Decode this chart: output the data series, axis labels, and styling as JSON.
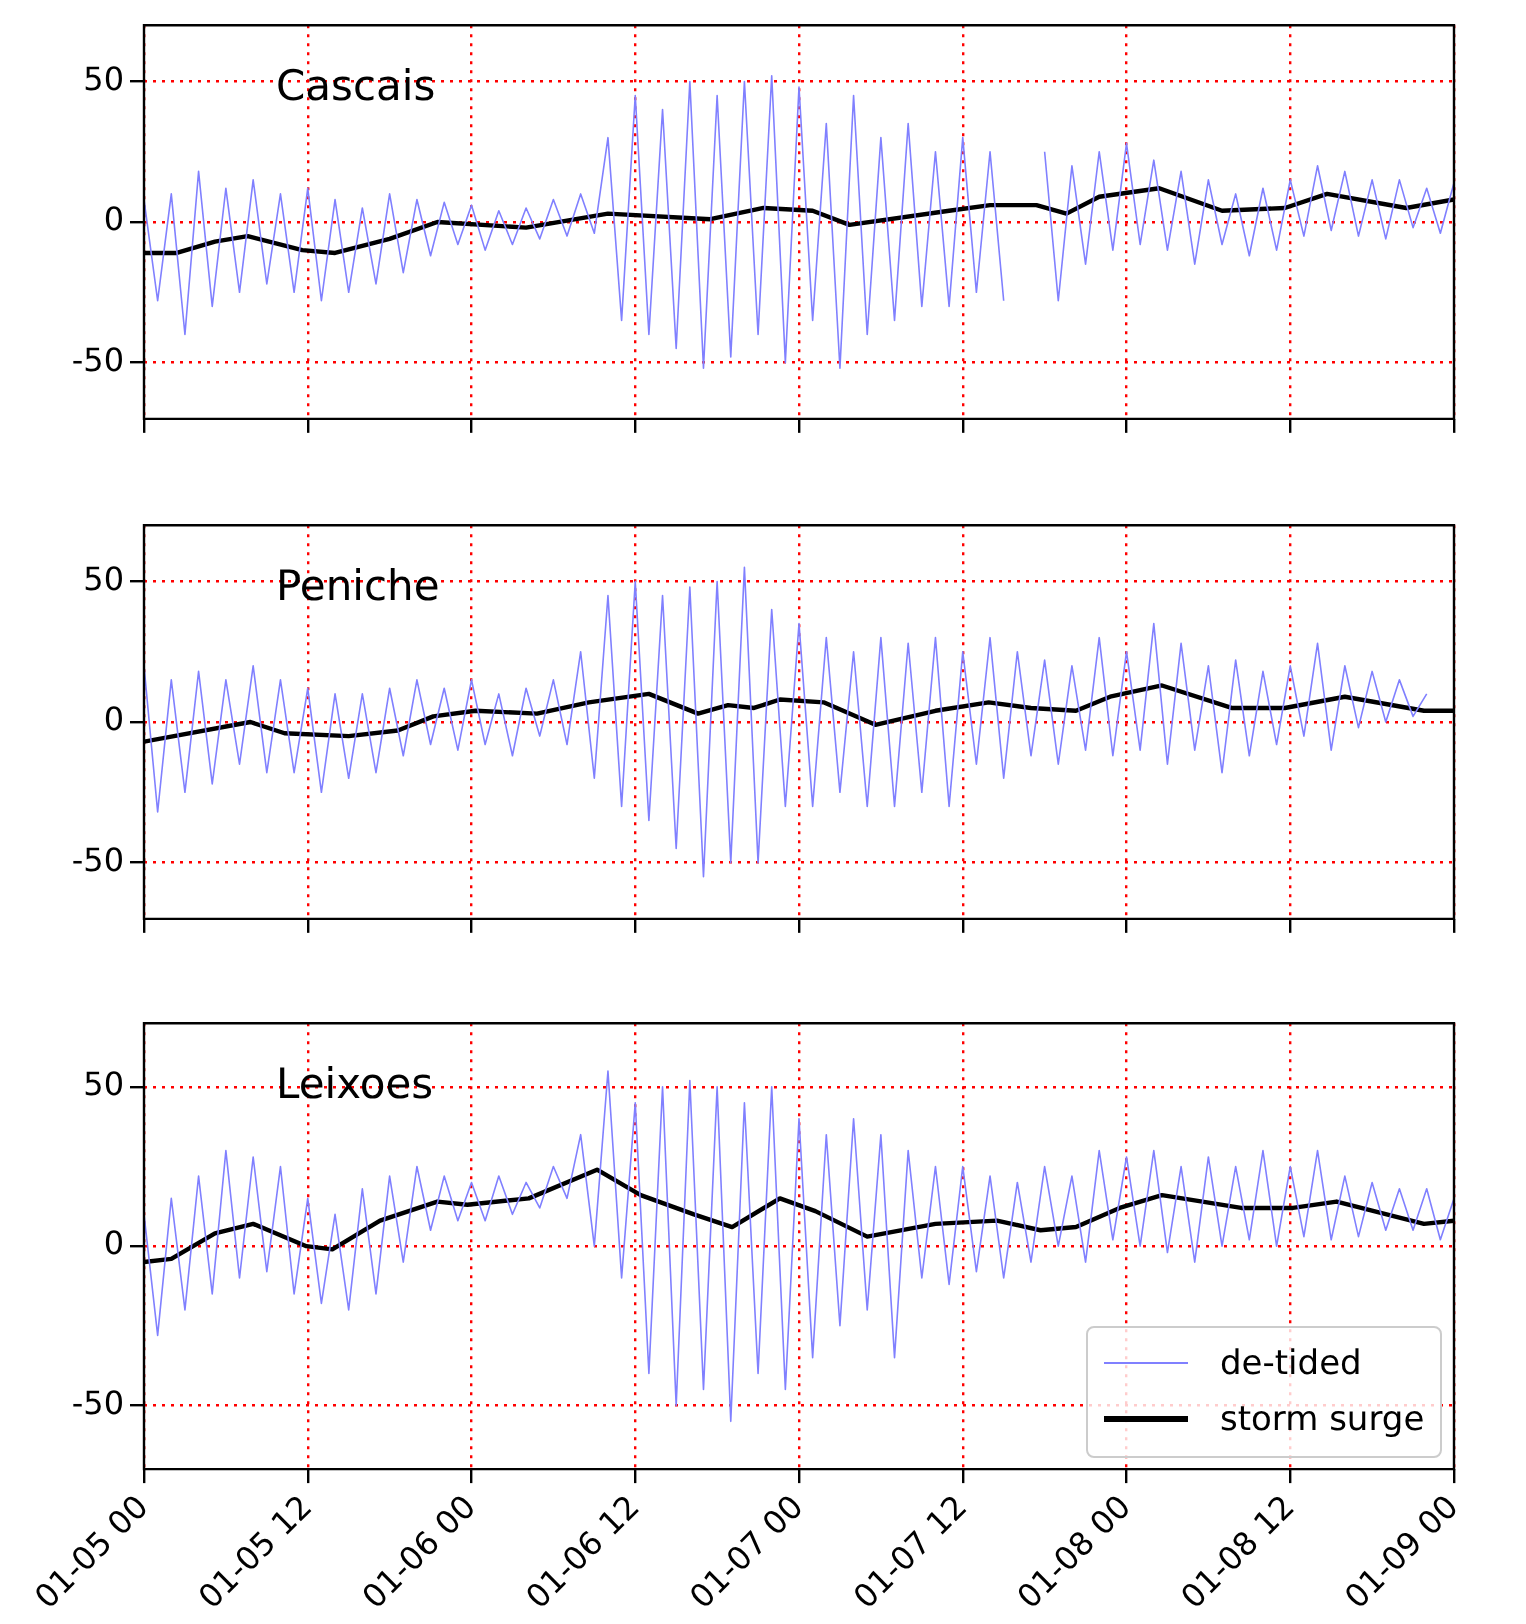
{
  "chart_data": [
    {
      "type": "line",
      "annotations": [
        "Cascais"
      ],
      "x": [
        "--01-05T00:00",
        "--01-05T01:00",
        "--01-05T02:00",
        "--01-05T03:00",
        "--01-05T04:00",
        "--01-05T05:00",
        "--01-05T06:00",
        "--01-05T07:00",
        "--01-05T08:00",
        "--01-05T09:00",
        "--01-05T10:00",
        "--01-05T11:00",
        "--01-05T12:00",
        "--01-05T13:00",
        "--01-05T14:00",
        "--01-05T15:00",
        "--01-05T16:00",
        "--01-05T17:00",
        "--01-05T18:00",
        "--01-05T19:00",
        "--01-05T20:00",
        "--01-05T21:00",
        "--01-05T22:00",
        "--01-05T23:00",
        "--01-06T00:00",
        "--01-06T01:00",
        "--01-06T02:00",
        "--01-06T03:00",
        "--01-06T04:00",
        "--01-06T05:00",
        "--01-06T06:00",
        "--01-06T07:00",
        "--01-06T08:00",
        "--01-06T09:00",
        "--01-06T10:00",
        "--01-06T11:00",
        "--01-06T12:00",
        "--01-06T13:00",
        "--01-06T14:00",
        "--01-06T15:00",
        "--01-06T16:00",
        "--01-06T17:00",
        "--01-06T18:00",
        "--01-06T19:00",
        "--01-06T20:00",
        "--01-06T21:00",
        "--01-06T22:00",
        "--01-06T23:00",
        "--01-07T00:00",
        "--01-07T01:00",
        "--01-07T02:00",
        "--01-07T03:00",
        "--01-07T04:00",
        "--01-07T05:00",
        "--01-07T06:00",
        "--01-07T07:00",
        "--01-07T08:00",
        "--01-07T09:00",
        "--01-07T10:00",
        "--01-07T11:00",
        "--01-07T12:00",
        "--01-07T13:00",
        "--01-07T14:00",
        "--01-07T15:00",
        "--01-07T16:00",
        "--01-07T17:00",
        "--01-07T18:00",
        "--01-07T19:00",
        "--01-07T20:00",
        "--01-07T21:00",
        "--01-07T22:00",
        "--01-07T23:00",
        "--01-08T00:00",
        "--01-08T01:00",
        "--01-08T02:00",
        "--01-08T03:00",
        "--01-08T04:00",
        "--01-08T05:00",
        "--01-08T06:00",
        "--01-08T07:00",
        "--01-08T08:00",
        "--01-08T09:00",
        "--01-08T10:00",
        "--01-08T11:00",
        "--01-08T12:00",
        "--01-08T13:00",
        "--01-08T14:00",
        "--01-08T15:00",
        "--01-08T16:00",
        "--01-08T17:00",
        "--01-08T18:00",
        "--01-08T19:00",
        "--01-08T20:00",
        "--01-08T21:00",
        "--01-08T22:00",
        "--01-08T23:00",
        "--01-09T00:00"
      ],
      "series": [
        {
          "color": "#8080ff",
          "values": [
            8,
            -28,
            10,
            -40,
            18,
            -30,
            12,
            -25,
            15,
            -22,
            10,
            -25,
            12,
            -28,
            8,
            -25,
            5,
            -22,
            10,
            -18,
            8,
            -12,
            7,
            -8,
            6,
            -10,
            4,
            -8,
            5,
            -6,
            8,
            -5,
            10,
            -4,
            30,
            -35,
            45,
            -40,
            40,
            -45,
            50,
            -52,
            45,
            -48,
            50,
            -40,
            52,
            -50,
            48,
            -35,
            35,
            -52,
            45,
            -40,
            30,
            -35,
            35,
            -30,
            25,
            -30,
            30,
            -25,
            25,
            -28,
            null,
            null,
            25,
            -28,
            20,
            -15,
            25,
            -10,
            28,
            -8,
            22,
            -10,
            18,
            -15,
            15,
            -8,
            10,
            -12,
            12,
            -10,
            15,
            -5,
            20,
            -3,
            18,
            -5,
            15,
            -6,
            15,
            -2,
            12,
            -4,
            14
          ]
        },
        {
          "color": "#000000",
          "x": [
            "--01-05T00:00",
            "--01-05T02:24",
            "--01-05T05:12",
            "--01-05T07:36",
            "--01-05T11:36",
            "--01-05T14:00",
            "--01-05T18:00",
            "--01-05T21:30",
            "--01-06T04:00",
            "--01-06T10:00",
            "--01-06T17:30",
            "--01-06T21:24",
            "--01-07T01:00",
            "--01-07T03:42",
            "--01-07T11:00",
            "--01-07T14:00",
            "--01-07T17:24",
            "--01-07T19:36",
            "--01-07T22:00",
            "--01-08T02:24",
            "--01-08T07:00",
            "--01-08T11:36",
            "--01-08T14:42",
            "--01-08T20:30",
            "--01-09T00:00"
          ],
          "values": [
            -11,
            -11,
            -7,
            -5,
            -10,
            -11,
            -6,
            0,
            -2,
            3,
            1,
            5,
            4,
            -1,
            4,
            6,
            6,
            3,
            9,
            12,
            4,
            5,
            10,
            5,
            8
          ]
        }
      ],
      "xlim": [
        "--01-05T00:00",
        "--01-09T00:00"
      ],
      "xticks": [
        {
          "value": "--01-05T00:00",
          "label": null
        },
        {
          "value": "--01-05T12:00",
          "label": null
        },
        {
          "value": "--01-06T00:00",
          "label": null
        },
        {
          "value": "--01-06T12:00",
          "label": null
        },
        {
          "value": "--01-07T00:00",
          "label": null
        },
        {
          "value": "--01-07T12:00",
          "label": null
        },
        {
          "value": "--01-08T00:00",
          "label": null
        },
        {
          "value": "--01-08T12:00",
          "label": null
        },
        {
          "value": "--01-09T00:00",
          "label": null
        }
      ],
      "ylim": [
        -70,
        70
      ],
      "yticks": [
        -50,
        0,
        50
      ],
      "grid": true,
      "tick_labels": "y"
    },
    {
      "type": "line",
      "annotations": [
        "Peniche"
      ],
      "x": [
        "--01-05T00:00",
        "--01-05T01:00",
        "--01-05T02:00",
        "--01-05T03:00",
        "--01-05T04:00",
        "--01-05T05:00",
        "--01-05T06:00",
        "--01-05T07:00",
        "--01-05T08:00",
        "--01-05T09:00",
        "--01-05T10:00",
        "--01-05T11:00",
        "--01-05T12:00",
        "--01-05T13:00",
        "--01-05T14:00",
        "--01-05T15:00",
        "--01-05T16:00",
        "--01-05T17:00",
        "--01-05T18:00",
        "--01-05T19:00",
        "--01-05T20:00",
        "--01-05T21:00",
        "--01-05T22:00",
        "--01-05T23:00",
        "--01-06T00:00",
        "--01-06T01:00",
        "--01-06T02:00",
        "--01-06T03:00",
        "--01-06T04:00",
        "--01-06T05:00",
        "--01-06T06:00",
        "--01-06T07:00",
        "--01-06T08:00",
        "--01-06T09:00",
        "--01-06T10:00",
        "--01-06T11:00",
        "--01-06T12:00",
        "--01-06T13:00",
        "--01-06T14:00",
        "--01-06T15:00",
        "--01-06T16:00",
        "--01-06T17:00",
        "--01-06T18:00",
        "--01-06T19:00",
        "--01-06T20:00",
        "--01-06T21:00",
        "--01-06T22:00",
        "--01-06T23:00",
        "--01-07T00:00",
        "--01-07T01:00",
        "--01-07T02:00",
        "--01-07T03:00",
        "--01-07T04:00",
        "--01-07T05:00",
        "--01-07T06:00",
        "--01-07T07:00",
        "--01-07T08:00",
        "--01-07T09:00",
        "--01-07T10:00",
        "--01-07T11:00",
        "--01-07T12:00",
        "--01-07T13:00",
        "--01-07T14:00",
        "--01-07T15:00",
        "--01-07T16:00",
        "--01-07T17:00",
        "--01-07T18:00",
        "--01-07T19:00",
        "--01-07T20:00",
        "--01-07T21:00",
        "--01-07T22:00",
        "--01-07T23:00",
        "--01-08T00:00",
        "--01-08T01:00",
        "--01-08T02:00",
        "--01-08T03:00",
        "--01-08T04:00",
        "--01-08T05:00",
        "--01-08T06:00",
        "--01-08T07:00",
        "--01-08T08:00",
        "--01-08T09:00",
        "--01-08T10:00",
        "--01-08T11:00",
        "--01-08T12:00",
        "--01-08T13:00",
        "--01-08T14:00",
        "--01-08T15:00",
        "--01-08T16:00",
        "--01-08T17:00",
        "--01-08T18:00",
        "--01-08T19:00",
        "--01-08T20:00",
        "--01-08T21:00",
        "--01-08T22:00"
      ],
      "series": [
        {
          "color": "#8080ff",
          "values": [
            20,
            -32,
            15,
            -25,
            18,
            -22,
            15,
            -15,
            20,
            -18,
            15,
            -18,
            12,
            -25,
            10,
            -20,
            10,
            -18,
            12,
            -12,
            15,
            -8,
            12,
            -10,
            15,
            -8,
            10,
            -12,
            12,
            -5,
            15,
            -8,
            25,
            -20,
            45,
            -30,
            50,
            -35,
            45,
            -45,
            48,
            -55,
            50,
            -50,
            55,
            -50,
            40,
            -30,
            35,
            -30,
            30,
            -25,
            25,
            -30,
            30,
            -30,
            28,
            -25,
            30,
            -30,
            25,
            -15,
            30,
            -20,
            25,
            -12,
            22,
            -15,
            20,
            -10,
            30,
            -12,
            25,
            -10,
            35,
            -15,
            28,
            -10,
            20,
            -18,
            22,
            -12,
            18,
            -8,
            20,
            -5,
            28,
            -10,
            20,
            -2,
            18,
            0,
            15,
            2,
            10
          ]
        },
        {
          "color": "#000000",
          "x": [
            "--01-05T00:00",
            "--01-05T07:48",
            "--01-05T10:18",
            "--01-05T15:00",
            "--01-05T18:36",
            "--01-05T21:12",
            "--01-06T00:18",
            "--01-06T04:48",
            "--01-06T08:36",
            "--01-06T13:00",
            "--01-06T16:36",
            "--01-06T18:48",
            "--01-06T20:42",
            "--01-06T22:36",
            "--01-07T01:48",
            "--01-07T05:36",
            "--01-07T10:00",
            "--01-07T13:54",
            "--01-07T17:00",
            "--01-07T20:18",
            "--01-07T22:48",
            "--01-08T02:36",
            "--01-08T07:42",
            "--01-08T11:36",
            "--01-08T16:00",
            "--01-08T21:48",
            "--01-09T00:00"
          ],
          "values": [
            -7,
            0,
            -4,
            -5,
            -3,
            2,
            4,
            3,
            7,
            10,
            3,
            6,
            5,
            8,
            7,
            -1,
            4,
            7,
            5,
            4,
            9,
            13,
            5,
            5,
            9,
            4,
            4
          ]
        }
      ],
      "xlim": [
        "--01-05T00:00",
        "--01-09T00:00"
      ],
      "xticks": [
        {
          "value": "--01-05T00:00",
          "label": null
        },
        {
          "value": "--01-05T12:00",
          "label": null
        },
        {
          "value": "--01-06T00:00",
          "label": null
        },
        {
          "value": "--01-06T12:00",
          "label": null
        },
        {
          "value": "--01-07T00:00",
          "label": null
        },
        {
          "value": "--01-07T12:00",
          "label": null
        },
        {
          "value": "--01-08T00:00",
          "label": null
        },
        {
          "value": "--01-08T12:00",
          "label": null
        },
        {
          "value": "--01-09T00:00",
          "label": null
        }
      ],
      "ylim": [
        -70,
        70
      ],
      "yticks": [
        -50,
        0,
        50
      ],
      "grid": true,
      "tick_labels": "y"
    },
    {
      "type": "line",
      "annotations": [
        "Leixoes"
      ],
      "x": [
        "--01-05T00:00",
        "--01-05T01:00",
        "--01-05T02:00",
        "--01-05T03:00",
        "--01-05T04:00",
        "--01-05T05:00",
        "--01-05T06:00",
        "--01-05T07:00",
        "--01-05T08:00",
        "--01-05T09:00",
        "--01-05T10:00",
        "--01-05T11:00",
        "--01-05T12:00",
        "--01-05T13:00",
        "--01-05T14:00",
        "--01-05T15:00",
        "--01-05T16:00",
        "--01-05T17:00",
        "--01-05T18:00",
        "--01-05T19:00",
        "--01-05T20:00",
        "--01-05T21:00",
        "--01-05T22:00",
        "--01-05T23:00",
        "--01-06T00:00",
        "--01-06T01:00",
        "--01-06T02:00",
        "--01-06T03:00",
        "--01-06T04:00",
        "--01-06T05:00",
        "--01-06T06:00",
        "--01-06T07:00",
        "--01-06T08:00",
        "--01-06T09:00",
        "--01-06T10:00",
        "--01-06T11:00",
        "--01-06T12:00",
        "--01-06T13:00",
        "--01-06T14:00",
        "--01-06T15:00",
        "--01-06T16:00",
        "--01-06T17:00",
        "--01-06T18:00",
        "--01-06T19:00",
        "--01-06T20:00",
        "--01-06T21:00",
        "--01-06T22:00",
        "--01-06T23:00",
        "--01-07T00:00",
        "--01-07T01:00",
        "--01-07T02:00",
        "--01-07T03:00",
        "--01-07T04:00",
        "--01-07T05:00",
        "--01-07T06:00",
        "--01-07T07:00",
        "--01-07T08:00",
        "--01-07T09:00",
        "--01-07T10:00",
        "--01-07T11:00",
        "--01-07T12:00",
        "--01-07T13:00",
        "--01-07T14:00",
        "--01-07T15:00",
        "--01-07T16:00",
        "--01-07T17:00",
        "--01-07T18:00",
        "--01-07T19:00",
        "--01-07T20:00",
        "--01-07T21:00",
        "--01-07T22:00",
        "--01-07T23:00",
        "--01-08T00:00",
        "--01-08T01:00",
        "--01-08T02:00",
        "--01-08T03:00",
        "--01-08T04:00",
        "--01-08T05:00",
        "--01-08T06:00",
        "--01-08T07:00",
        "--01-08T08:00",
        "--01-08T09:00",
        "--01-08T10:00",
        "--01-08T11:00",
        "--01-08T12:00",
        "--01-08T13:00",
        "--01-08T14:00",
        "--01-08T15:00",
        "--01-08T16:00",
        "--01-08T17:00",
        "--01-08T18:00",
        "--01-08T19:00",
        "--01-08T20:00",
        "--01-08T21:00",
        "--01-08T22:00",
        "--01-08T23:00",
        "--01-09T00:00"
      ],
      "series": [
        {
          "name": "de-tided",
          "color": "#8080ff",
          "values": [
            10,
            -28,
            15,
            -20,
            22,
            -15,
            30,
            -10,
            28,
            -8,
            25,
            -15,
            15,
            -18,
            10,
            -20,
            18,
            -15,
            22,
            -5,
            25,
            5,
            22,
            8,
            20,
            8,
            22,
            10,
            20,
            12,
            25,
            15,
            35,
            0,
            55,
            -10,
            45,
            -40,
            50,
            -50,
            52,
            -45,
            50,
            -55,
            45,
            -40,
            50,
            -45,
            40,
            -35,
            35,
            -25,
            40,
            -20,
            35,
            -35,
            30,
            -10,
            25,
            -12,
            25,
            -8,
            22,
            -10,
            20,
            -5,
            25,
            0,
            22,
            -5,
            30,
            2,
            28,
            0,
            30,
            -2,
            25,
            -5,
            28,
            0,
            25,
            2,
            30,
            0,
            25,
            3,
            30,
            2,
            22,
            3,
            20,
            5,
            18,
            5,
            18,
            2,
            15
          ]
        },
        {
          "name": "storm surge",
          "color": "#000000",
          "x": [
            "--01-05T00:00",
            "--01-05T02:00",
            "--01-05T05:12",
            "--01-05T08:00",
            "--01-05T11:54",
            "--01-05T13:48",
            "--01-05T17:18",
            "--01-05T21:30",
            "--01-05T23:42",
            "--01-06T04:12",
            "--01-06T09:12",
            "--01-06T12:24",
            "--01-06T16:18",
            "--01-06T19:06",
            "--01-06T22:36",
            "--01-07T01:12",
            "--01-07T05:00",
            "--01-07T10:00",
            "--01-07T14:30",
            "--01-07T17:42",
            "--01-07T20:18",
            "--01-07T23:30",
            "--01-08T02:36",
            "--01-08T08:24",
            "--01-08T12:12",
            "--01-08T15:24",
            "--01-08T21:48",
            "--01-09T00:00"
          ],
          "values": [
            -5,
            -4,
            4,
            7,
            0,
            -1,
            8,
            14,
            13,
            15,
            24,
            16,
            10,
            6,
            15,
            11,
            3,
            7,
            8,
            5,
            6,
            12,
            16,
            12,
            12,
            14,
            7,
            8
          ]
        }
      ],
      "xlim": [
        "--01-05T00:00",
        "--01-09T00:00"
      ],
      "xticks": [
        {
          "value": "--01-05T00:00",
          "label": "01-05 00"
        },
        {
          "value": "--01-05T12:00",
          "label": "01-05 12"
        },
        {
          "value": "--01-06T00:00",
          "label": "01-06 00"
        },
        {
          "value": "--01-06T12:00",
          "label": "01-06 12"
        },
        {
          "value": "--01-07T00:00",
          "label": "01-07 00"
        },
        {
          "value": "--01-07T12:00",
          "label": "01-07 12"
        },
        {
          "value": "--01-08T00:00",
          "label": "01-08 00"
        },
        {
          "value": "--01-08T12:00",
          "label": "01-08 12"
        },
        {
          "value": "--01-09T00:00",
          "label": "01-09 00"
        }
      ],
      "ylim": [
        -70,
        70
      ],
      "yticks": [
        -50,
        0,
        50
      ],
      "grid": true,
      "legend": "bottom right"
    }
  ]
}
